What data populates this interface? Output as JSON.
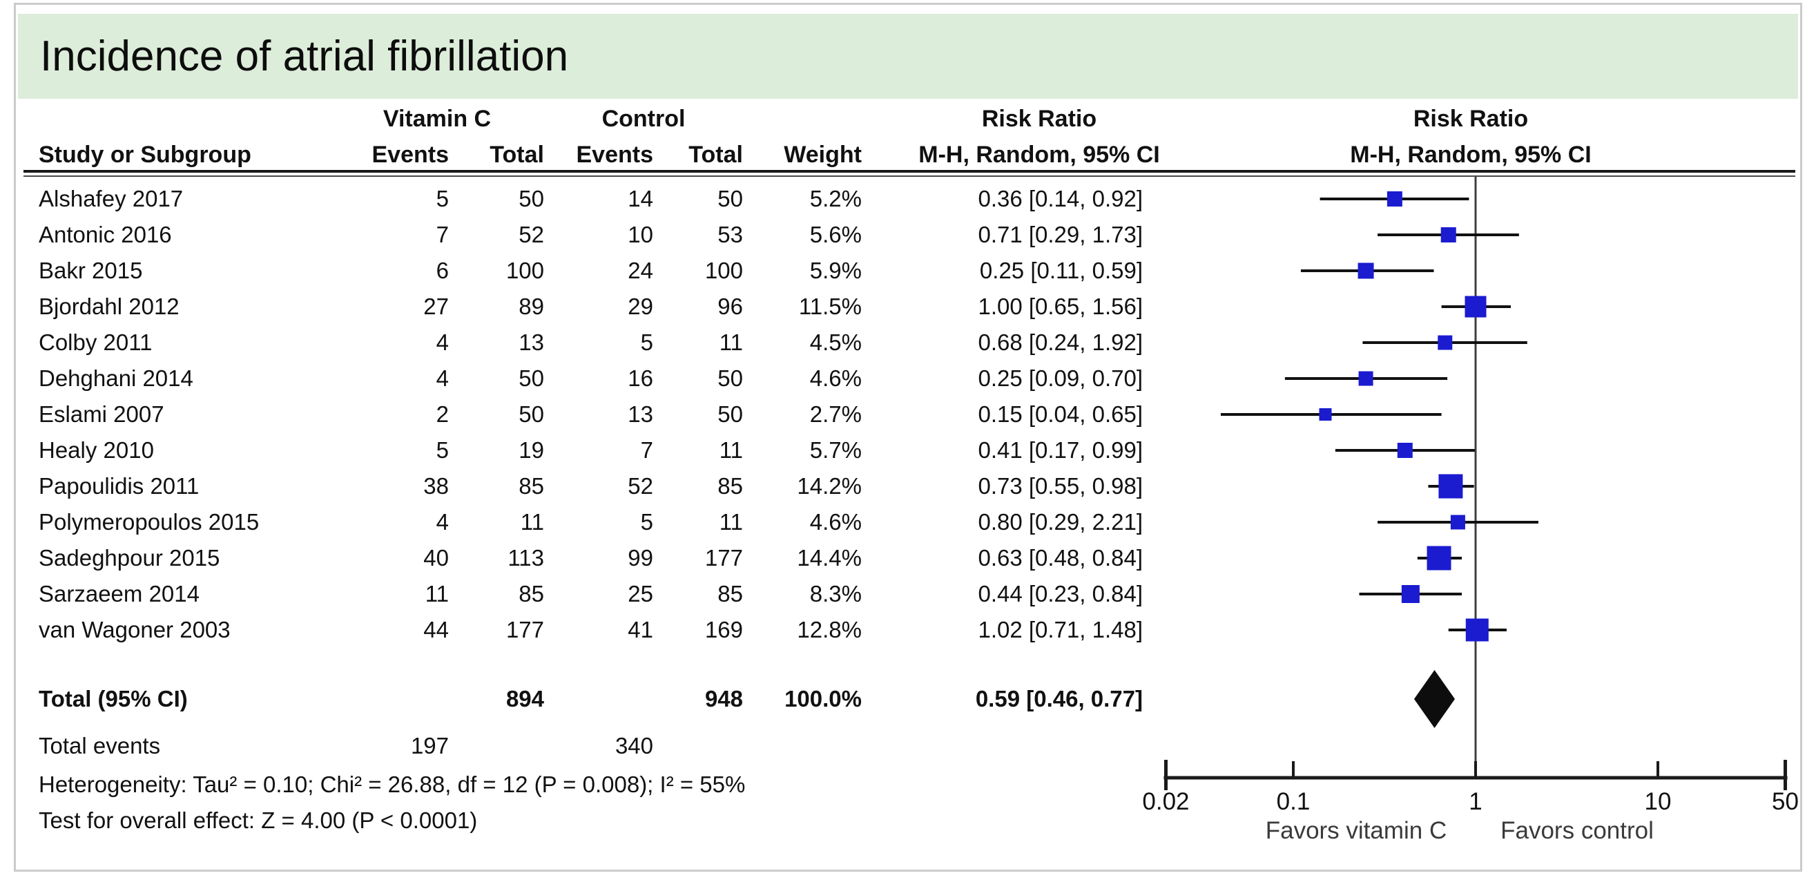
{
  "title": "Incidence of atrial fibrillation",
  "colors": {
    "title_bar_bg": "#dcedda",
    "square_blue": "#1b1bd0",
    "ci_line": "#111111",
    "border_gray": "#cbcbcb"
  },
  "header": {
    "group1": "Vitamin C",
    "group2": "Control",
    "study": "Study or Subgroup",
    "events": "Events",
    "total": "Total",
    "weight": "Weight",
    "risk_ratio": "Risk Ratio",
    "method": "M-H, Random, 95% CI"
  },
  "chart_data": {
    "type": "forest",
    "x_scale": "log",
    "axis": {
      "min": 0.02,
      "max": 50,
      "ticks": [
        0.02,
        0.1,
        1,
        10,
        50
      ],
      "favors_left": "Favors vitamin C",
      "favors_right": "Favors control"
    },
    "studies": [
      {
        "name": "Alshafey 2017",
        "events1": 5,
        "total1": 50,
        "events2": 14,
        "total2": 50,
        "weight": "5.2%",
        "weight_pct": 5.2,
        "rr": 0.36,
        "low": 0.14,
        "high": 0.92,
        "rr_text": "0.36 [0.14, 0.92]"
      },
      {
        "name": "Antonic 2016",
        "events1": 7,
        "total1": 52,
        "events2": 10,
        "total2": 53,
        "weight": "5.6%",
        "weight_pct": 5.6,
        "rr": 0.71,
        "low": 0.29,
        "high": 1.73,
        "rr_text": "0.71 [0.29, 1.73]"
      },
      {
        "name": "Bakr 2015",
        "events1": 6,
        "total1": 100,
        "events2": 24,
        "total2": 100,
        "weight": "5.9%",
        "weight_pct": 5.9,
        "rr": 0.25,
        "low": 0.11,
        "high": 0.59,
        "rr_text": "0.25 [0.11, 0.59]"
      },
      {
        "name": "Bjordahl 2012",
        "events1": 27,
        "total1": 89,
        "events2": 29,
        "total2": 96,
        "weight": "11.5%",
        "weight_pct": 11.5,
        "rr": 1.0,
        "low": 0.65,
        "high": 1.56,
        "rr_text": "1.00 [0.65, 1.56]"
      },
      {
        "name": "Colby 2011",
        "events1": 4,
        "total1": 13,
        "events2": 5,
        "total2": 11,
        "weight": "4.5%",
        "weight_pct": 4.5,
        "rr": 0.68,
        "low": 0.24,
        "high": 1.92,
        "rr_text": "0.68 [0.24, 1.92]"
      },
      {
        "name": "Dehghani 2014",
        "events1": 4,
        "total1": 50,
        "events2": 16,
        "total2": 50,
        "weight": "4.6%",
        "weight_pct": 4.6,
        "rr": 0.25,
        "low": 0.09,
        "high": 0.7,
        "rr_text": "0.25 [0.09, 0.70]"
      },
      {
        "name": "Eslami 2007",
        "events1": 2,
        "total1": 50,
        "events2": 13,
        "total2": 50,
        "weight": "2.7%",
        "weight_pct": 2.7,
        "rr": 0.15,
        "low": 0.04,
        "high": 0.65,
        "rr_text": "0.15 [0.04, 0.65]"
      },
      {
        "name": "Healy 2010",
        "events1": 5,
        "total1": 19,
        "events2": 7,
        "total2": 11,
        "weight": "5.7%",
        "weight_pct": 5.7,
        "rr": 0.41,
        "low": 0.17,
        "high": 0.99,
        "rr_text": "0.41 [0.17, 0.99]"
      },
      {
        "name": "Papoulidis 2011",
        "events1": 38,
        "total1": 85,
        "events2": 52,
        "total2": 85,
        "weight": "14.2%",
        "weight_pct": 14.2,
        "rr": 0.73,
        "low": 0.55,
        "high": 0.98,
        "rr_text": "0.73 [0.55, 0.98]"
      },
      {
        "name": "Polymeropoulos 2015",
        "events1": 4,
        "total1": 11,
        "events2": 5,
        "total2": 11,
        "weight": "4.6%",
        "weight_pct": 4.6,
        "rr": 0.8,
        "low": 0.29,
        "high": 2.21,
        "rr_text": "0.80 [0.29, 2.21]"
      },
      {
        "name": "Sadeghpour 2015",
        "events1": 40,
        "total1": 113,
        "events2": 99,
        "total2": 177,
        "weight": "14.4%",
        "weight_pct": 14.4,
        "rr": 0.63,
        "low": 0.48,
        "high": 0.84,
        "rr_text": "0.63 [0.48, 0.84]"
      },
      {
        "name": "Sarzaeem 2014",
        "events1": 11,
        "total1": 85,
        "events2": 25,
        "total2": 85,
        "weight": "8.3%",
        "weight_pct": 8.3,
        "rr": 0.44,
        "low": 0.23,
        "high": 0.84,
        "rr_text": "0.44 [0.23, 0.84]"
      },
      {
        "name": "van Wagoner 2003",
        "events1": 44,
        "total1": 177,
        "events2": 41,
        "total2": 169,
        "weight": "12.8%",
        "weight_pct": 12.8,
        "rr": 1.02,
        "low": 0.71,
        "high": 1.48,
        "rr_text": "1.02 [0.71, 1.48]"
      }
    ],
    "total": {
      "label": "Total (95% CI)",
      "total1": 894,
      "total2": 948,
      "weight": "100.0%",
      "rr": 0.59,
      "low": 0.46,
      "high": 0.77,
      "rr_text": "0.59 [0.46, 0.77]"
    },
    "total_events": {
      "label": "Total events",
      "events1": 197,
      "events2": 340
    },
    "heterogeneity": "Heterogeneity: Tau² = 0.10; Chi² = 26.88, df = 12 (P = 0.008); I² = 55%",
    "overall_effect": "Test for overall effect: Z = 4.00 (P < 0.0001)"
  }
}
